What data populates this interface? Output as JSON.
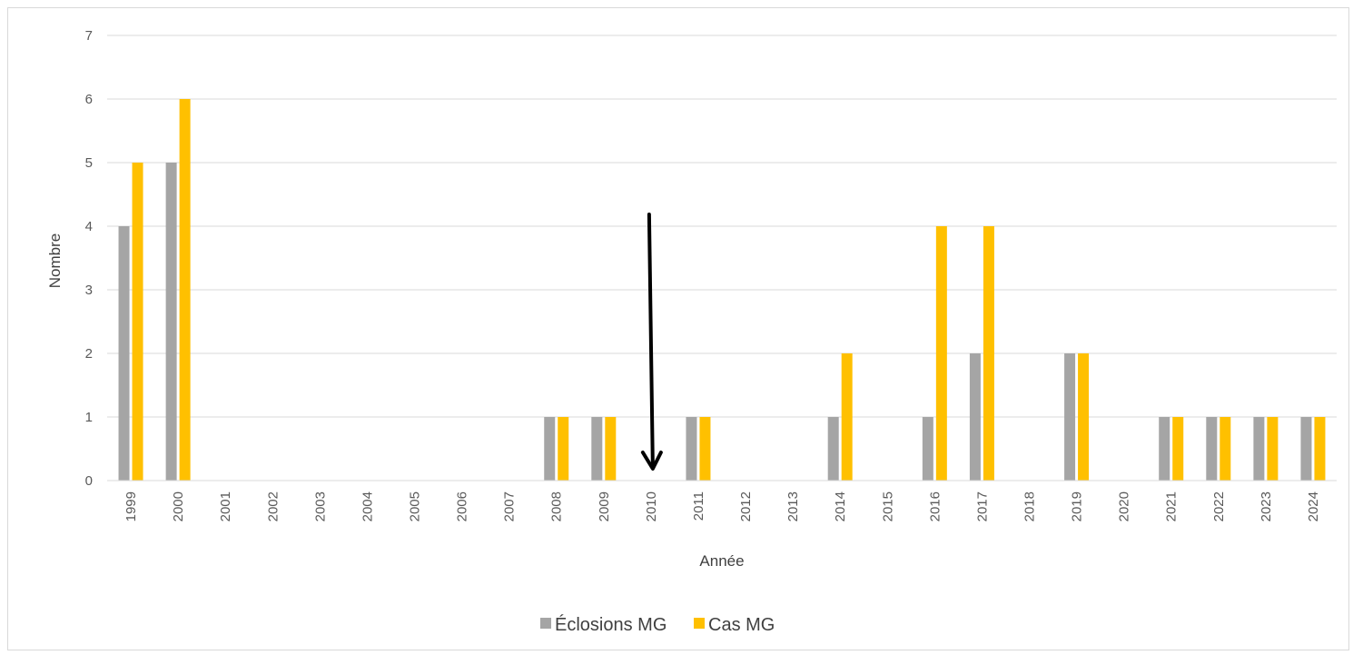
{
  "chart_data": {
    "type": "bar",
    "categories": [
      "1999",
      "2000",
      "2001",
      "2002",
      "2003",
      "2004",
      "2005",
      "2006",
      "2007",
      "2008",
      "2009",
      "2010",
      "2011",
      "2012",
      "2013",
      "2014",
      "2015",
      "2016",
      "2017",
      "2018",
      "2019",
      "2020",
      "2021",
      "2022",
      "2023",
      "2024"
    ],
    "series": [
      {
        "name": "Éclosions MG",
        "color": "#a5a5a5",
        "values": [
          4,
          5,
          0,
          0,
          0,
          0,
          0,
          0,
          0,
          1,
          1,
          0,
          1,
          0,
          0,
          1,
          0,
          1,
          2,
          0,
          2,
          0,
          1,
          1,
          1,
          1
        ]
      },
      {
        "name": "Cas MG",
        "color": "#ffc000",
        "values": [
          5,
          6,
          0,
          0,
          0,
          0,
          0,
          0,
          0,
          1,
          1,
          0,
          1,
          0,
          0,
          2,
          0,
          4,
          4,
          0,
          2,
          0,
          1,
          1,
          1,
          1
        ]
      }
    ],
    "xlabel": "Année",
    "ylabel": "Nombre",
    "ylim": [
      0,
      7
    ],
    "yticks": [
      0,
      1,
      2,
      3,
      4,
      5,
      6,
      7
    ],
    "grid": true,
    "legend_position": "bottom",
    "annotation": {
      "type": "arrow",
      "points_to_category": "2010",
      "color": "#000000"
    }
  }
}
